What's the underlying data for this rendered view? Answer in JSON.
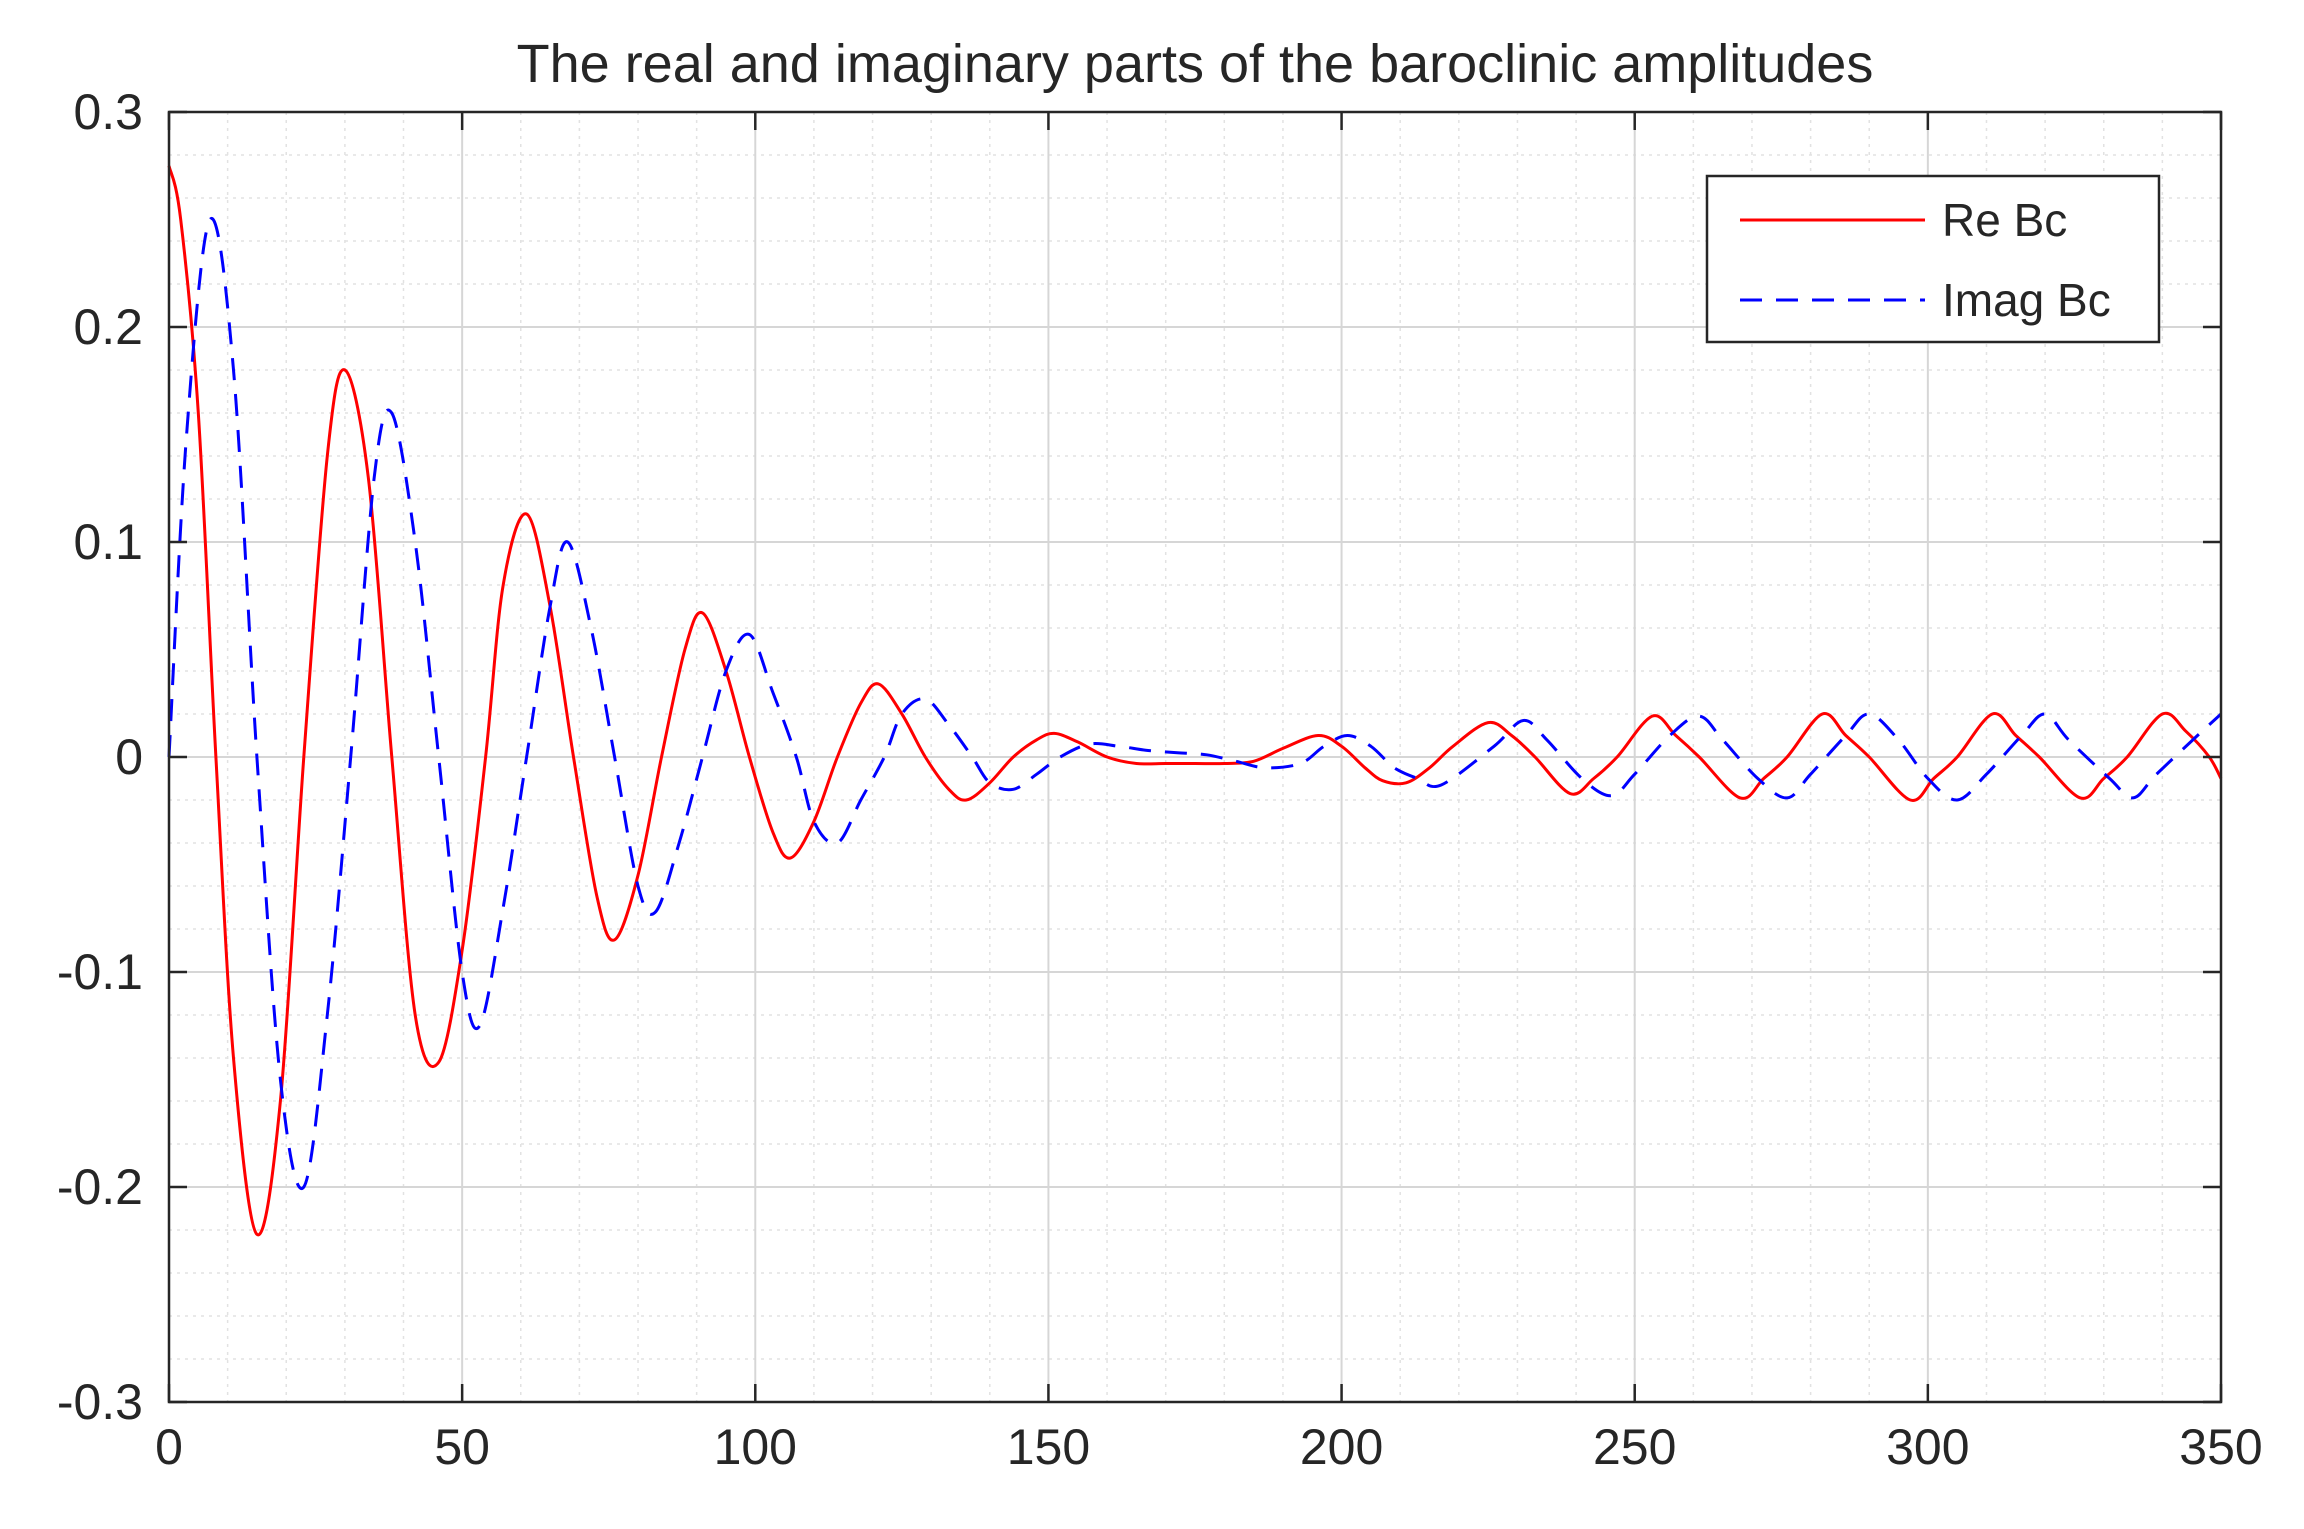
{
  "chart_data": {
    "type": "line",
    "title": "The real and imaginary parts of the baroclinic amplitudes",
    "xlabel": "",
    "ylabel": "",
    "xlim": [
      0,
      350
    ],
    "ylim": [
      -0.3,
      0.3
    ],
    "xticks": [
      0,
      50,
      100,
      150,
      200,
      250,
      300,
      350
    ],
    "xtick_labels": [
      "0",
      "50",
      "100",
      "150",
      "200",
      "250",
      "300",
      "350"
    ],
    "yticks": [
      -0.3,
      -0.2,
      -0.1,
      0,
      0.1,
      0.2,
      0.3
    ],
    "ytick_labels": [
      "-0.3",
      "-0.2",
      "-0.1",
      "0",
      "0.1",
      "0.2",
      "0.3"
    ],
    "grid": true,
    "minor_grid": true,
    "legend_position": "top-right",
    "series": [
      {
        "name": "Re Bc",
        "color": "#ff0000",
        "style": "solid",
        "x": [
          0,
          2,
          5,
          8,
          11,
          15,
          19,
          23,
          27,
          30,
          34,
          38,
          42,
          46,
          50,
          54,
          57,
          61,
          65,
          69,
          73,
          76,
          80,
          84,
          88,
          91,
          95,
          99,
          103,
          106,
          110,
          114,
          118,
          121,
          125,
          129,
          133,
          136,
          140,
          144,
          148,
          151,
          155,
          160,
          165,
          170,
          175,
          180,
          185,
          190,
          196,
          200,
          204,
          207,
          211,
          215,
          219,
          225,
          229,
          233,
          239,
          243,
          247,
          253,
          257,
          261,
          268,
          272,
          276,
          282,
          286,
          290,
          297,
          301,
          305,
          311,
          315,
          319,
          326,
          330,
          334,
          340,
          344,
          348,
          350
        ],
        "values": [
          0.275,
          0.25,
          0.16,
          0.0,
          -0.14,
          -0.222,
          -0.16,
          0.0,
          0.14,
          0.18,
          0.13,
          0.0,
          -0.12,
          -0.142,
          -0.09,
          0.0,
          0.08,
          0.113,
          0.07,
          0.0,
          -0.065,
          -0.085,
          -0.055,
          0.0,
          0.05,
          0.067,
          0.04,
          0.0,
          -0.035,
          -0.047,
          -0.03,
          0.0,
          0.025,
          0.034,
          0.02,
          0.0,
          -0.015,
          -0.02,
          -0.012,
          0.0,
          0.008,
          0.011,
          0.007,
          0.0,
          -0.003,
          -0.003,
          -0.003,
          -0.003,
          -0.002,
          0.004,
          0.01,
          0.005,
          -0.005,
          -0.011,
          -0.012,
          -0.005,
          0.005,
          0.016,
          0.01,
          0.0,
          -0.017,
          -0.01,
          0.0,
          0.019,
          0.01,
          0.0,
          -0.019,
          -0.01,
          0.0,
          0.02,
          0.01,
          0.0,
          -0.02,
          -0.01,
          0.0,
          0.02,
          0.01,
          0.0,
          -0.019,
          -0.01,
          0.0,
          0.02,
          0.012,
          0.0,
          -0.01
        ]
      },
      {
        "name": "Imag Bc",
        "color": "#0000ff",
        "style": "dashed",
        "x": [
          0,
          3,
          7,
          11,
          15,
          19,
          23,
          27,
          31,
          35,
          38,
          42,
          46,
          50,
          53,
          57,
          61,
          65,
          68,
          72,
          76,
          80,
          83,
          87,
          91,
          95,
          99,
          103,
          107,
          110,
          114,
          118,
          122,
          125,
          129,
          133,
          137,
          140,
          144,
          148,
          152,
          157,
          162,
          167,
          172,
          177,
          182,
          187,
          193,
          197,
          201,
          205,
          209,
          213,
          217,
          226,
          231,
          235,
          241,
          246,
          250,
          256,
          261,
          265,
          271,
          276,
          280,
          286,
          290,
          295,
          300,
          305,
          310,
          316,
          320,
          324,
          331,
          335,
          339,
          346,
          350
        ],
        "values": [
          0.0,
          0.15,
          0.25,
          0.18,
          0.0,
          -0.15,
          -0.2,
          -0.12,
          0.0,
          0.13,
          0.16,
          0.1,
          0.0,
          -0.1,
          -0.125,
          -0.07,
          0.0,
          0.07,
          0.1,
          0.06,
          0.0,
          -0.06,
          -0.072,
          -0.04,
          0.0,
          0.04,
          0.057,
          0.03,
          0.0,
          -0.03,
          -0.04,
          -0.02,
          0.0,
          0.02,
          0.027,
          0.015,
          0.0,
          -0.012,
          -0.015,
          -0.008,
          0.0,
          0.006,
          0.005,
          0.003,
          0.002,
          0.001,
          -0.002,
          -0.005,
          -0.003,
          0.005,
          0.01,
          0.005,
          -0.005,
          -0.01,
          -0.013,
          0.005,
          0.017,
          0.008,
          -0.01,
          -0.018,
          -0.008,
          0.01,
          0.019,
          0.008,
          -0.01,
          -0.019,
          -0.008,
          0.01,
          0.02,
          0.008,
          -0.01,
          -0.02,
          -0.008,
          0.01,
          0.02,
          0.008,
          -0.01,
          -0.019,
          -0.008,
          0.01,
          0.02
        ]
      }
    ]
  }
}
